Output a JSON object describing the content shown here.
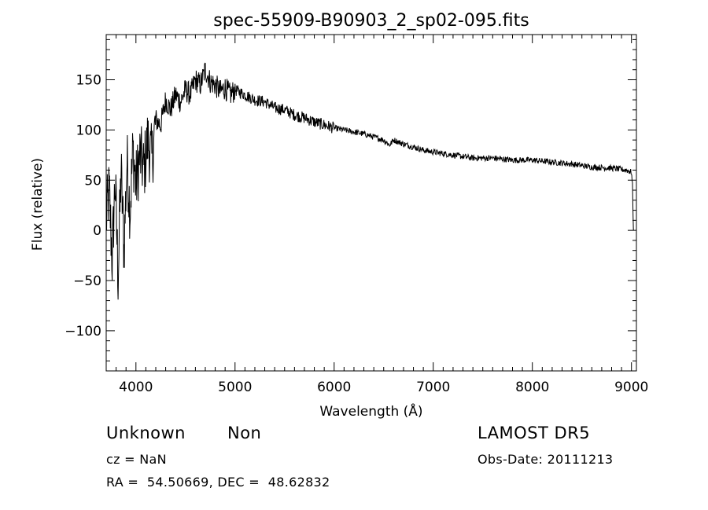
{
  "chart_data": {
    "type": "line",
    "title": "spec-55909-B90903_2_sp02-095.fits",
    "xlabel": "Wavelength (Å)",
    "ylabel": "Flux (relative)",
    "xlim": [
      3700,
      9050
    ],
    "ylim": [
      -140,
      195
    ],
    "x_ticks": [
      4000,
      5000,
      6000,
      7000,
      8000,
      9000
    ],
    "y_ticks": [
      -100,
      -50,
      0,
      50,
      100,
      150
    ],
    "grid": false,
    "line_color": "#000000",
    "series": [
      {
        "x": [
          3700,
          3730,
          3760,
          3790,
          3820,
          3850,
          3880,
          3910,
          3940,
          3970,
          4000,
          4040,
          4080,
          4120,
          4160,
          4200,
          4250,
          4300,
          4350,
          4400,
          4450,
          4500,
          4550,
          4600,
          4650,
          4700,
          4750,
          4800,
          4850,
          4900,
          4950,
          5000,
          5100,
          5200,
          5300,
          5400,
          5500,
          5600,
          5700,
          5800,
          5900,
          6000,
          6100,
          6200,
          6300,
          6400,
          6500,
          6560,
          6600,
          6700,
          6800,
          6900,
          7000,
          7200,
          7400,
          7600,
          7800,
          8000,
          8200,
          8400,
          8600,
          8800,
          8950,
          9000,
          9010,
          9020
        ],
        "y": [
          10,
          40,
          -30,
          50,
          -45,
          60,
          -20,
          70,
          20,
          80,
          45,
          75,
          60,
          90,
          70,
          110,
          105,
          130,
          120,
          135,
          128,
          140,
          135,
          150,
          145,
          160,
          148,
          145,
          138,
          142,
          135,
          140,
          135,
          130,
          128,
          122,
          120,
          115,
          112,
          108,
          105,
          102,
          100,
          98,
          96,
          93,
          90,
          85,
          90,
          86,
          83,
          80,
          78,
          75,
          72,
          72,
          70,
          70,
          68,
          66,
          63,
          62,
          60,
          58,
          45,
          0
        ]
      }
    ]
  },
  "info": {
    "object_class": "Unknown",
    "subclass": "Non",
    "cz": "cz = NaN",
    "coords": "RA =  54.50669, DEC =  48.62832",
    "survey": "LAMOST DR5",
    "obs_date": "Obs-Date: 20111213"
  }
}
